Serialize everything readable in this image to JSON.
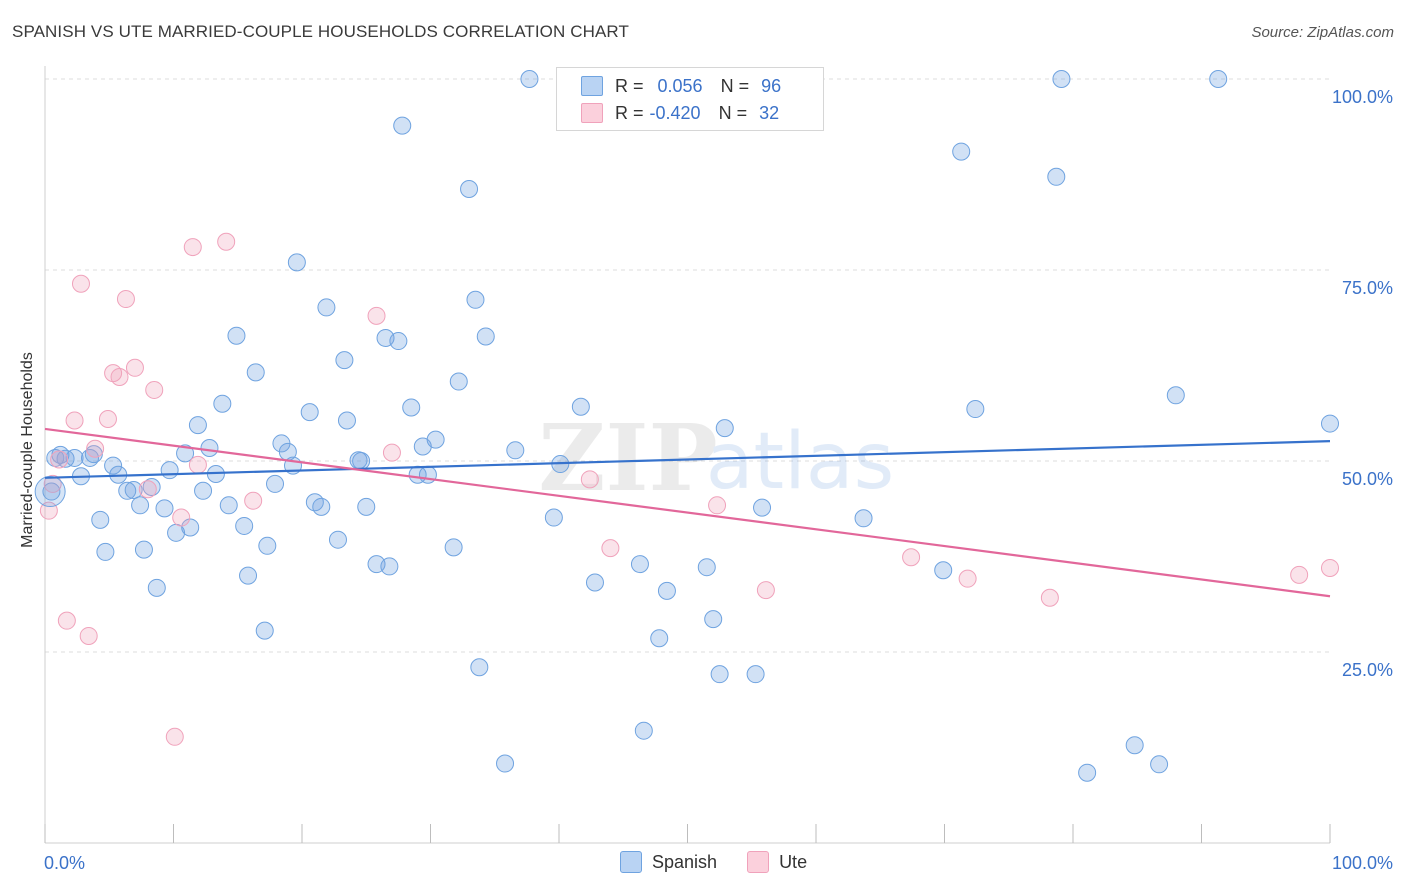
{
  "header": {
    "title": "SPANISH VS UTE MARRIED-COUPLE HOUSEHOLDS CORRELATION CHART",
    "source": "Source: ZipAtlas.com"
  },
  "watermark": {
    "text_zip": "ZIP",
    "text_atlas": "atlas"
  },
  "legend": {
    "spanish": {
      "r_label": "R =",
      "r_value": "0.056",
      "n_label": "N =",
      "n_value": "96",
      "color": "#6fa3e0"
    },
    "ute": {
      "r_label": "R =",
      "r_value": "-0.420",
      "n_label": "N =",
      "n_value": "32",
      "color": "#f0a2bb"
    }
  },
  "bottom_legend": {
    "spanish": "Spanish",
    "ute": "Ute"
  },
  "chart_data": {
    "type": "scatter",
    "title": "SPANISH VS UTE MARRIED-COUPLE HOUSEHOLDS CORRELATION CHART",
    "xlabel": "",
    "ylabel": "Married-couple Households",
    "xlim": [
      0,
      100
    ],
    "ylim": [
      0,
      100
    ],
    "x_tick_labels": [
      "0.0%",
      "100.0%"
    ],
    "y_tick_labels": [
      "25.0%",
      "50.0%",
      "75.0%",
      "100.0%"
    ],
    "y_ticks": [
      25,
      50,
      75,
      100
    ],
    "grid": true,
    "legend_position": "top-center",
    "series": [
      {
        "name": "Spanish",
        "color": "#6fa3e0",
        "trend": {
          "x": [
            0,
            100
          ],
          "y": [
            47.8,
            52.6
          ]
        },
        "points": [
          [
            0.5,
            46.0
          ],
          [
            0.8,
            50.4
          ],
          [
            1.2,
            50.8
          ],
          [
            1.6,
            50.3
          ],
          [
            2.3,
            50.4
          ],
          [
            2.8,
            48.0
          ],
          [
            3.5,
            50.4
          ],
          [
            3.8,
            50.9
          ],
          [
            4.3,
            42.3
          ],
          [
            4.7,
            38.1
          ],
          [
            5.3,
            49.4
          ],
          [
            5.7,
            48.2
          ],
          [
            6.4,
            46.1
          ],
          [
            6.9,
            46.2
          ],
          [
            7.4,
            44.2
          ],
          [
            7.7,
            38.4
          ],
          [
            8.3,
            46.6
          ],
          [
            8.7,
            33.4
          ],
          [
            9.3,
            43.8
          ],
          [
            9.7,
            48.8
          ],
          [
            10.2,
            40.6
          ],
          [
            10.9,
            51.0
          ],
          [
            11.3,
            41.3
          ],
          [
            11.9,
            54.7
          ],
          [
            12.3,
            46.1
          ],
          [
            12.8,
            51.7
          ],
          [
            13.3,
            48.3
          ],
          [
            13.8,
            57.5
          ],
          [
            14.3,
            44.2
          ],
          [
            14.9,
            66.4
          ],
          [
            15.5,
            41.5
          ],
          [
            15.8,
            35.0
          ],
          [
            16.4,
            61.6
          ],
          [
            17.1,
            27.8
          ],
          [
            17.3,
            38.9
          ],
          [
            17.9,
            47.0
          ],
          [
            18.4,
            52.3
          ],
          [
            18.9,
            51.2
          ],
          [
            19.3,
            49.4
          ],
          [
            19.6,
            76.0
          ],
          [
            20.6,
            56.4
          ],
          [
            21.0,
            44.6
          ],
          [
            21.5,
            44.0
          ],
          [
            21.9,
            70.1
          ],
          [
            22.8,
            39.7
          ],
          [
            23.3,
            63.2
          ],
          [
            23.5,
            55.3
          ],
          [
            24.4,
            50.1
          ],
          [
            24.6,
            50.0
          ],
          [
            25.0,
            44.0
          ],
          [
            25.8,
            36.5
          ],
          [
            26.5,
            66.1
          ],
          [
            26.8,
            36.2
          ],
          [
            27.5,
            65.7
          ],
          [
            27.8,
            93.9
          ],
          [
            28.5,
            57.0
          ],
          [
            29.0,
            48.2
          ],
          [
            29.4,
            51.9
          ],
          [
            29.8,
            48.2
          ],
          [
            30.4,
            52.8
          ],
          [
            31.8,
            38.7
          ],
          [
            32.2,
            60.4
          ],
          [
            33.0,
            85.6
          ],
          [
            33.5,
            71.1
          ],
          [
            33.8,
            23.0
          ],
          [
            34.3,
            66.3
          ],
          [
            35.8,
            10.4
          ],
          [
            36.6,
            51.4
          ],
          [
            37.7,
            100.0
          ],
          [
            39.6,
            42.6
          ],
          [
            40.1,
            49.6
          ],
          [
            41.7,
            57.1
          ],
          [
            42.8,
            34.1
          ],
          [
            46.3,
            36.5
          ],
          [
            46.6,
            14.7
          ],
          [
            47.8,
            26.8
          ],
          [
            48.4,
            33.0
          ],
          [
            51.5,
            36.1
          ],
          [
            52.0,
            29.3
          ],
          [
            52.2,
            100.0
          ],
          [
            52.5,
            22.1
          ],
          [
            52.9,
            54.3
          ],
          [
            55.3,
            22.1
          ],
          [
            55.8,
            43.9
          ],
          [
            63.7,
            42.5
          ],
          [
            71.3,
            90.5
          ],
          [
            69.9,
            35.7
          ],
          [
            72.4,
            56.8
          ],
          [
            78.7,
            87.2
          ],
          [
            79.1,
            100.0
          ],
          [
            81.1,
            9.2
          ],
          [
            84.8,
            12.8
          ],
          [
            88.0,
            58.6
          ],
          [
            86.7,
            10.3
          ],
          [
            91.3,
            100.0
          ],
          [
            100.0,
            54.9
          ]
        ]
      },
      {
        "name": "Ute",
        "color": "#f0a2bb",
        "trend": {
          "x": [
            0,
            100
          ],
          "y": [
            54.2,
            32.3
          ]
        },
        "points": [
          [
            0.3,
            43.5
          ],
          [
            0.6,
            47.0
          ],
          [
            1.1,
            50.2
          ],
          [
            1.7,
            29.1
          ],
          [
            2.3,
            55.3
          ],
          [
            2.8,
            73.2
          ],
          [
            3.4,
            27.1
          ],
          [
            3.9,
            51.6
          ],
          [
            4.9,
            55.5
          ],
          [
            5.3,
            61.5
          ],
          [
            5.8,
            61.0
          ],
          [
            6.3,
            71.2
          ],
          [
            7.0,
            62.2
          ],
          [
            8.0,
            46.3
          ],
          [
            8.5,
            59.3
          ],
          [
            10.1,
            13.9
          ],
          [
            10.6,
            42.6
          ],
          [
            11.5,
            78.0
          ],
          [
            11.9,
            49.5
          ],
          [
            14.1,
            78.7
          ],
          [
            16.2,
            44.8
          ],
          [
            25.8,
            69.0
          ],
          [
            27.0,
            51.1
          ],
          [
            42.4,
            47.6
          ],
          [
            44.0,
            38.6
          ],
          [
            52.3,
            44.2
          ],
          [
            56.1,
            33.1
          ],
          [
            67.4,
            37.4
          ],
          [
            71.8,
            34.6
          ],
          [
            78.2,
            32.1
          ],
          [
            97.6,
            35.1
          ],
          [
            100.0,
            36.0
          ]
        ]
      }
    ]
  }
}
